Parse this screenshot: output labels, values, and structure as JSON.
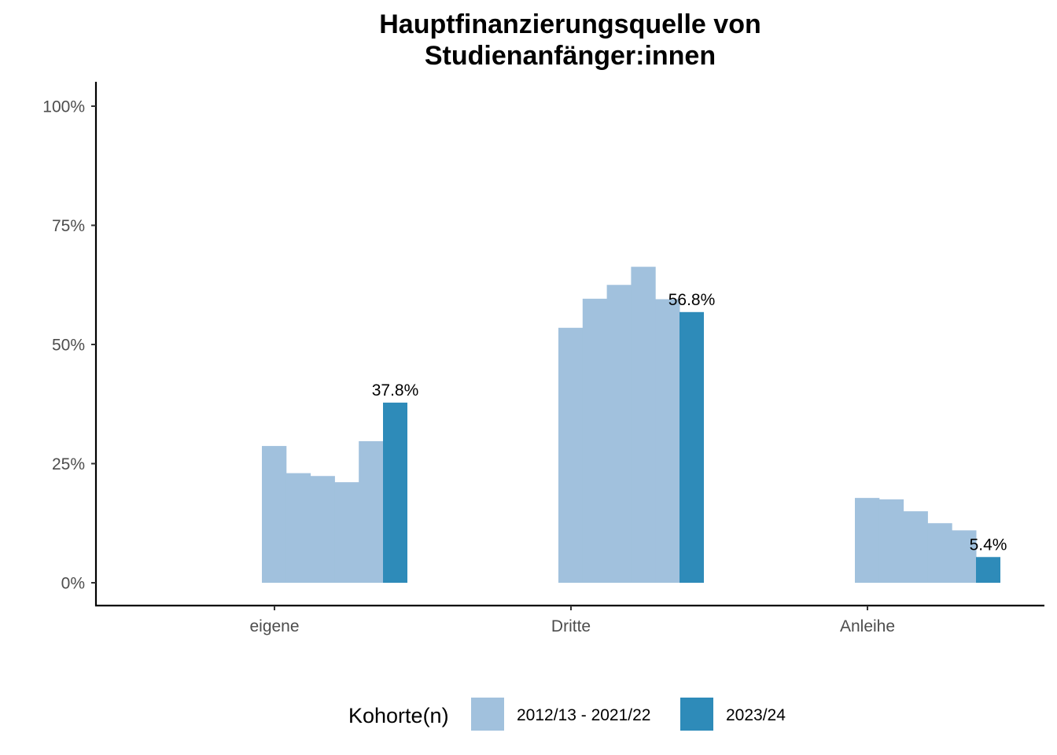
{
  "chart_data": {
    "type": "bar",
    "title": "Hauptfinanzierungsquelle von\nStudienanfänger:innen",
    "title_lines": [
      "Hauptfinanzierungsquelle von",
      "Studienanfänger:innen"
    ],
    "categories": [
      "eigene",
      "Dritte",
      "Anleihe"
    ],
    "ylim": [
      0,
      100
    ],
    "y_ticks": [
      0,
      25,
      50,
      75,
      100
    ],
    "y_tick_labels": [
      "0%",
      "25%",
      "50%",
      "75%",
      "100%"
    ],
    "xlabel": "",
    "ylabel": "",
    "grid": false,
    "series": [
      {
        "name": "2012/13 - 2021/22",
        "color": "#a1c1dd",
        "bars_per_category": 5,
        "values": [
          [
            28.7,
            23.0,
            22.4,
            21.1,
            29.7
          ],
          [
            53.5,
            59.6,
            62.5,
            66.3,
            59.5
          ],
          [
            17.8,
            17.5,
            15.0,
            12.5,
            11.0
          ]
        ]
      },
      {
        "name": "2023/24",
        "color": "#2e8bb9",
        "values": [
          37.8,
          56.8,
          5.4
        ],
        "labels": [
          "37.8%",
          "56.8%",
          "5.4%"
        ]
      }
    ],
    "legend": {
      "title": "Kohorte(n)",
      "position": "bottom",
      "entries": [
        "2012/13 - 2021/22",
        "2023/24"
      ]
    }
  }
}
